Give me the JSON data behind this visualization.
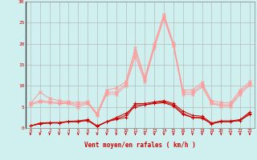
{
  "x": [
    0,
    1,
    2,
    3,
    4,
    5,
    6,
    7,
    8,
    9,
    10,
    11,
    12,
    13,
    14,
    15,
    16,
    17,
    18,
    19,
    20,
    21,
    22,
    23
  ],
  "line1": [
    0.5,
    1.0,
    1.2,
    1.2,
    1.5,
    1.5,
    1.8,
    0.3,
    1.5,
    2.0,
    2.5,
    5.5,
    5.5,
    6.0,
    6.2,
    5.5,
    3.5,
    2.5,
    2.5,
    1.0,
    1.5,
    1.5,
    1.8,
    3.5
  ],
  "line2": [
    0.5,
    1.2,
    1.3,
    1.3,
    1.6,
    1.7,
    2.0,
    0.5,
    1.5,
    2.2,
    3.0,
    5.8,
    5.8,
    6.2,
    6.5,
    5.8,
    4.0,
    3.0,
    2.8,
    1.2,
    1.7,
    1.7,
    2.0,
    3.8
  ],
  "line3": [
    0.5,
    1.0,
    1.2,
    1.2,
    1.5,
    1.5,
    1.8,
    0.5,
    1.5,
    2.5,
    3.5,
    5.0,
    5.5,
    5.8,
    6.0,
    5.2,
    3.2,
    2.5,
    2.3,
    1.0,
    1.5,
    1.5,
    1.8,
    3.2
  ],
  "line4_light": [
    5.8,
    6.5,
    6.2,
    6.0,
    6.0,
    5.5,
    6.0,
    3.0,
    8.5,
    8.5,
    10.5,
    18.0,
    11.5,
    19.5,
    26.5,
    19.8,
    8.5,
    8.5,
    10.2,
    6.0,
    5.5,
    5.5,
    8.5,
    10.5
  ],
  "line5_light": [
    5.8,
    8.5,
    7.0,
    6.5,
    6.2,
    6.0,
    6.2,
    3.5,
    9.0,
    9.5,
    11.0,
    19.0,
    12.0,
    20.0,
    27.0,
    20.2,
    9.0,
    9.0,
    10.8,
    6.5,
    6.0,
    6.0,
    9.0,
    11.0
  ],
  "line6_light": [
    5.5,
    6.2,
    6.0,
    5.8,
    5.8,
    5.0,
    5.8,
    3.2,
    8.0,
    8.0,
    10.0,
    17.0,
    11.0,
    19.0,
    26.0,
    19.5,
    8.0,
    8.0,
    9.8,
    5.8,
    5.2,
    5.2,
    8.0,
    10.2
  ],
  "bg_color": "#cff0ee",
  "grid_color": "#b0b0b0",
  "line_dark_color": "#cc0000",
  "line_light_color": "#ff9999",
  "arrow_color": "#cc0000",
  "xlabel": "Vent moyen/en rafales ( km/h )",
  "ylim": [
    0,
    30
  ],
  "xlim": [
    -0.5,
    23.5
  ],
  "yticks": [
    0,
    5,
    10,
    15,
    20,
    25,
    30
  ],
  "xticks": [
    0,
    1,
    2,
    3,
    4,
    5,
    6,
    7,
    8,
    9,
    10,
    11,
    12,
    13,
    14,
    15,
    16,
    17,
    18,
    19,
    20,
    21,
    22,
    23
  ]
}
